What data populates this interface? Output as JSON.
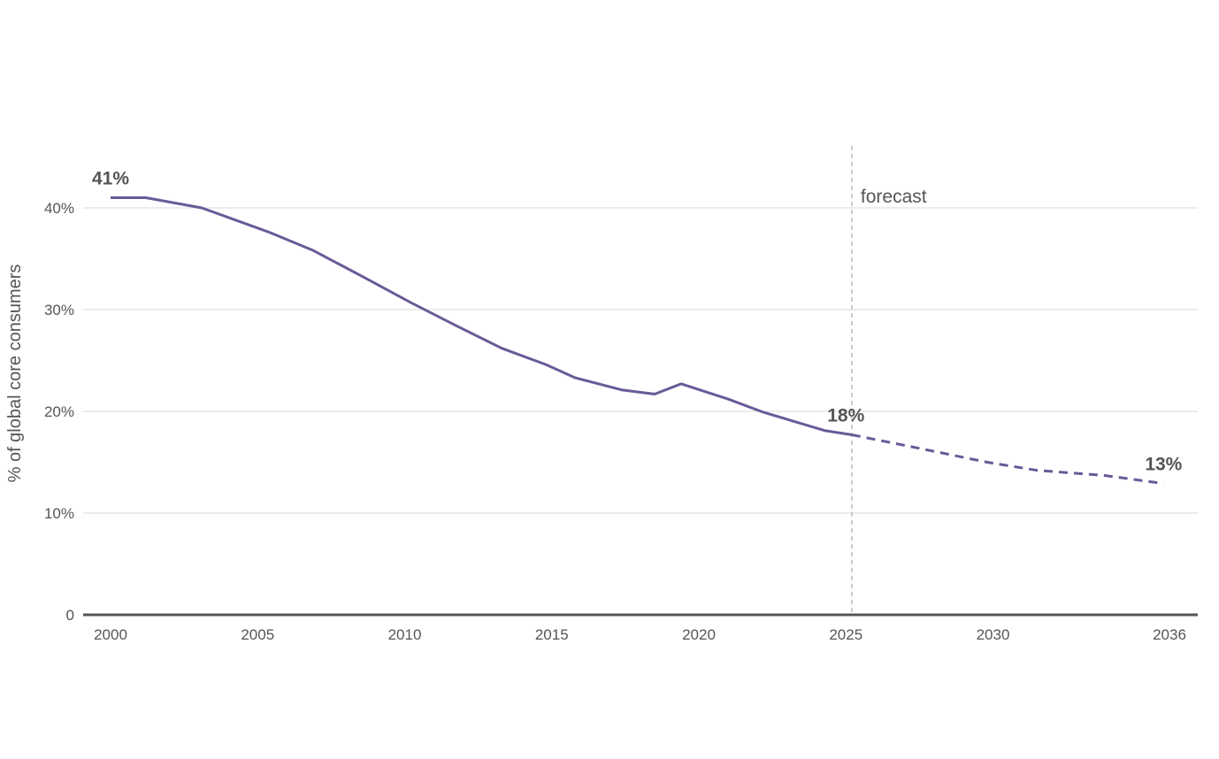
{
  "chart_data": {
    "type": "line",
    "title": "",
    "xlabel": "",
    "ylabel": "% of global core consumers",
    "xlim": [
      2000,
      2036
    ],
    "ylim": [
      0,
      45
    ],
    "x_ticks": [
      {
        "value": 2000,
        "label": "2000"
      },
      {
        "value": 2005,
        "label": "2005"
      },
      {
        "value": 2010,
        "label": "2010"
      },
      {
        "value": 2015,
        "label": "2015"
      },
      {
        "value": 2020,
        "label": "2020"
      },
      {
        "value": 2025,
        "label": "2025"
      },
      {
        "value": 2030,
        "label": "2030"
      },
      {
        "value": 2036,
        "label": "2036"
      }
    ],
    "y_ticks": [
      {
        "value": 0,
        "label": "0"
      },
      {
        "value": 10,
        "label": "10%"
      },
      {
        "value": 20,
        "label": "20%"
      },
      {
        "value": 30,
        "label": "30%"
      },
      {
        "value": 40,
        "label": "40%"
      }
    ],
    "grid": true,
    "series": [
      {
        "style": "solid",
        "color": "#6a5a98",
        "points": [
          {
            "x": 2000,
            "y": 41
          },
          {
            "x": 2001.2,
            "y": 41
          },
          {
            "x": 2003.1,
            "y": 40
          },
          {
            "x": 2005.4,
            "y": 37.6
          },
          {
            "x": 2006.9,
            "y": 35.8
          },
          {
            "x": 2008.6,
            "y": 33.2
          },
          {
            "x": 2010.2,
            "y": 30.7
          },
          {
            "x": 2011.7,
            "y": 28.5
          },
          {
            "x": 2013.3,
            "y": 26.2
          },
          {
            "x": 2014.8,
            "y": 24.6
          },
          {
            "x": 2015.8,
            "y": 23.3
          },
          {
            "x": 2017.4,
            "y": 22.1
          },
          {
            "x": 2018.5,
            "y": 21.7
          },
          {
            "x": 2019.4,
            "y": 22.7
          },
          {
            "x": 2021.0,
            "y": 21.2
          },
          {
            "x": 2022.2,
            "y": 19.9
          },
          {
            "x": 2024.3,
            "y": 18.1
          },
          {
            "x": 2025.2,
            "y": 17.7
          }
        ]
      },
      {
        "style": "dashed",
        "color": "#6a5a98",
        "points": [
          {
            "x": 2025.2,
            "y": 17.7
          },
          {
            "x": 2027.6,
            "y": 16.3
          },
          {
            "x": 2029.8,
            "y": 15.0
          },
          {
            "x": 2031.5,
            "y": 14.2
          },
          {
            "x": 2033.8,
            "y": 13.7
          },
          {
            "x": 2035.8,
            "y": 12.9
          }
        ]
      }
    ],
    "annotations": [
      {
        "text": "41%",
        "x": 2000,
        "y": 41
      },
      {
        "text": "18%",
        "x": 2025.0,
        "y": 17.7
      },
      {
        "text": "13%",
        "x": 2035.8,
        "y": 12.9
      }
    ],
    "forecast_marker": {
      "x": 2025.2,
      "label": "forecast"
    },
    "colors": {
      "line": "#6a5a98",
      "axis": "#555555",
      "grid": "#d9d9d9",
      "forecast_line": "#bbbbbb",
      "text": "#555555"
    }
  }
}
